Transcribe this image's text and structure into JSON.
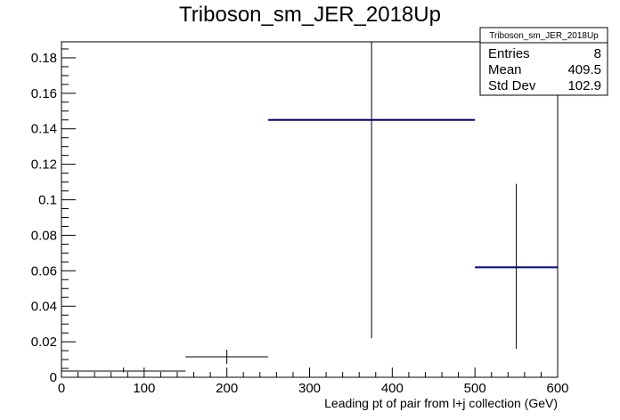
{
  "chart_data": {
    "type": "histogram",
    "title": "Triboson_sm_JER_2018Up",
    "xlabel": "Leading pt of pair from l+j collection (GeV)",
    "ylabel": "",
    "xlim": [
      0,
      600
    ],
    "ylim": [
      0,
      0.189
    ],
    "x_ticks": [
      0,
      100,
      200,
      300,
      400,
      500,
      600
    ],
    "y_ticks": [
      0,
      0.02,
      0.04,
      0.06,
      0.08,
      0.1,
      0.12,
      0.14,
      0.16,
      0.18
    ],
    "grid": false,
    "bins": [
      {
        "x_low": 0,
        "x_high": 150,
        "value": 0.0035,
        "err_low": 0.0028,
        "err_high": 0.0055,
        "style": "error"
      },
      {
        "x_low": 150,
        "x_high": 250,
        "value": 0.0115,
        "err_low": 0.0075,
        "err_high": 0.0155,
        "style": "error"
      },
      {
        "x_low": 250,
        "x_high": 500,
        "value": 0.145,
        "err_low": 0.022,
        "err_high": 0.189,
        "style": "hist"
      },
      {
        "x_low": 500,
        "x_high": 600,
        "value": 0.062,
        "err_low": 0.016,
        "err_high": 0.109,
        "style": "hist"
      }
    ],
    "stats": {
      "title": "Triboson_sm_JER_2018Up",
      "rows": [
        {
          "label": "Entries",
          "value": "8"
        },
        {
          "label": "Mean",
          "value": "409.5"
        },
        {
          "label": "Std Dev",
          "value": "102.9"
        }
      ]
    },
    "colors": {
      "hist_line": "#00007f",
      "error_bar": "#000000",
      "frame": "#000000"
    }
  }
}
